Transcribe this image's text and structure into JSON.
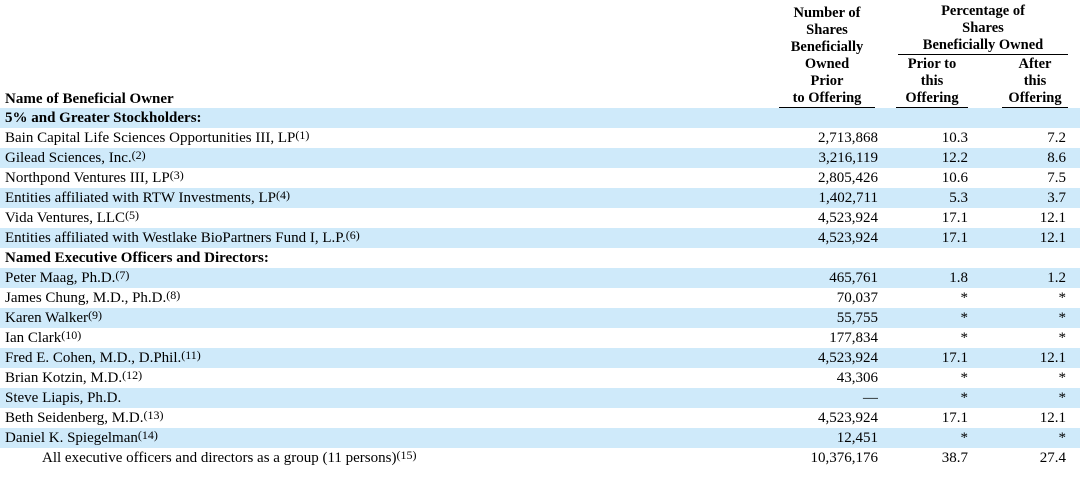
{
  "colors": {
    "row_stripe": "#cfeafa",
    "text": "#000000",
    "rule": "#000000"
  },
  "table": {
    "name_header": "Name of Beneficial Owner",
    "shares_header": {
      "lines": [
        "Number of",
        "Shares",
        "Beneficially",
        "Owned",
        "Prior"
      ],
      "underlined_line": "to Offering"
    },
    "percentage_header": {
      "lines": [
        "Percentage of",
        "Shares"
      ],
      "underlined_line": "Beneficially Owned",
      "sub_columns": [
        {
          "lines": [
            "Prior to",
            "this"
          ],
          "underlined_line": "Offering"
        },
        {
          "lines": [
            "After",
            "this"
          ],
          "underlined_line": "Offering"
        }
      ]
    },
    "rows": [
      {
        "name": "5% and Greater Stockholders:",
        "footnote": "",
        "bold": true,
        "indent": false,
        "shares": "",
        "pct_prior": "",
        "pct_after": ""
      },
      {
        "name": "Bain Capital Life Sciences Opportunities III, LP",
        "footnote": "(1)",
        "bold": false,
        "indent": false,
        "shares": "2,713,868",
        "pct_prior": "10.3",
        "pct_after": "7.2"
      },
      {
        "name": "Gilead Sciences, Inc.",
        "footnote": "(2)",
        "bold": false,
        "indent": false,
        "shares": "3,216,119",
        "pct_prior": "12.2",
        "pct_after": "8.6"
      },
      {
        "name": "Northpond Ventures III, LP",
        "footnote": "(3)",
        "bold": false,
        "indent": false,
        "shares": "2,805,426",
        "pct_prior": "10.6",
        "pct_after": "7.5"
      },
      {
        "name": "Entities affiliated with RTW Investments, LP",
        "footnote": "(4)",
        "bold": false,
        "indent": false,
        "shares": "1,402,711",
        "pct_prior": "5.3",
        "pct_after": "3.7"
      },
      {
        "name": "Vida Ventures, LLC",
        "footnote": "(5)",
        "bold": false,
        "indent": false,
        "shares": "4,523,924",
        "pct_prior": "17.1",
        "pct_after": "12.1"
      },
      {
        "name": "Entities affiliated with Westlake BioPartners Fund I, L.P.",
        "footnote": "(6)",
        "bold": false,
        "indent": false,
        "shares": "4,523,924",
        "pct_prior": "17.1",
        "pct_after": "12.1"
      },
      {
        "name": "Named Executive Officers and Directors:",
        "footnote": "",
        "bold": true,
        "indent": false,
        "shares": "",
        "pct_prior": "",
        "pct_after": ""
      },
      {
        "name": "Peter Maag, Ph.D.",
        "footnote": "(7)",
        "bold": false,
        "indent": false,
        "shares": "465,761",
        "pct_prior": "1.8",
        "pct_after": "1.2"
      },
      {
        "name": "James Chung, M.D., Ph.D.",
        "footnote": "(8)",
        "bold": false,
        "indent": false,
        "shares": "70,037",
        "pct_prior": "*",
        "pct_after": "*"
      },
      {
        "name": "Karen Walker",
        "footnote": "(9)",
        "bold": false,
        "indent": false,
        "shares": "55,755",
        "pct_prior": "*",
        "pct_after": "*"
      },
      {
        "name": "Ian Clark",
        "footnote": "(10)",
        "bold": false,
        "indent": false,
        "shares": "177,834",
        "pct_prior": "*",
        "pct_after": "*"
      },
      {
        "name": "Fred E. Cohen, M.D., D.Phil.",
        "footnote": "(11)",
        "bold": false,
        "indent": false,
        "shares": "4,523,924",
        "pct_prior": "17.1",
        "pct_after": "12.1"
      },
      {
        "name": "Brian Kotzin, M.D.",
        "footnote": "(12)",
        "bold": false,
        "indent": false,
        "shares": "43,306",
        "pct_prior": "*",
        "pct_after": "*"
      },
      {
        "name": "Steve Liapis, Ph.D.",
        "footnote": "",
        "bold": false,
        "indent": false,
        "shares": "—",
        "pct_prior": "*",
        "pct_after": "*"
      },
      {
        "name": "Beth Seidenberg, M.D.",
        "footnote": "(13)",
        "bold": false,
        "indent": false,
        "shares": "4,523,924",
        "pct_prior": "17.1",
        "pct_after": "12.1"
      },
      {
        "name": "Daniel K. Spiegelman",
        "footnote": "(14)",
        "bold": false,
        "indent": false,
        "shares": "12,451",
        "pct_prior": "*",
        "pct_after": "*"
      },
      {
        "name": "All executive officers and directors as a group (11 persons)",
        "footnote": "(15)",
        "bold": false,
        "indent": true,
        "shares": "10,376,176",
        "pct_prior": "38.7",
        "pct_after": "27.4"
      }
    ]
  }
}
